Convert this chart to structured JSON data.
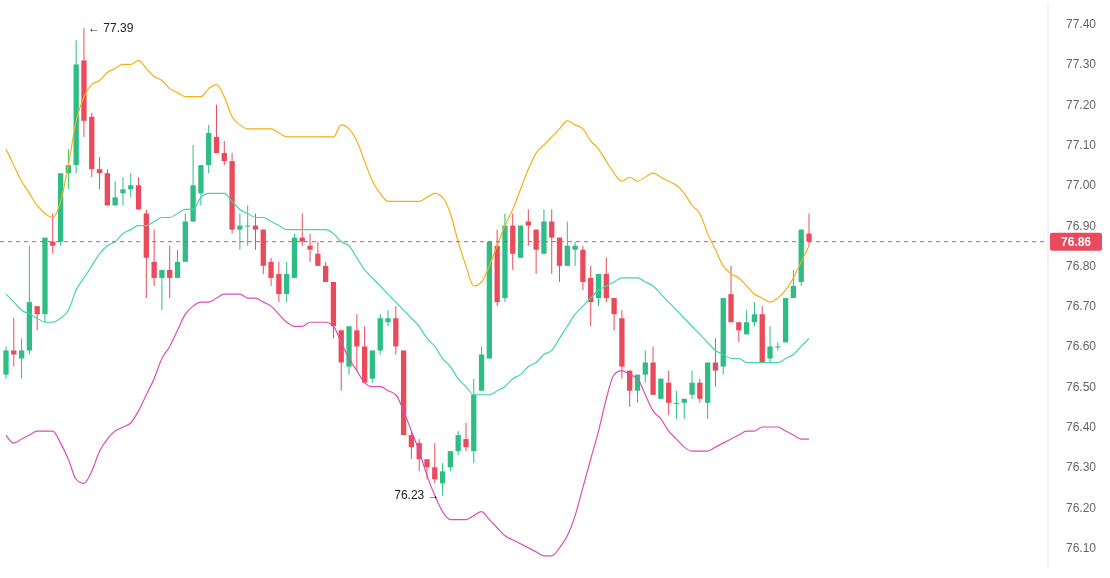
{
  "chart_data": {
    "type": "candlestick",
    "categories": [
      null,
      null,
      null,
      null,
      null,
      null,
      null,
      null,
      null,
      null,
      null,
      null,
      null,
      null,
      null,
      null,
      null,
      null,
      null,
      null,
      null,
      null,
      null,
      null,
      null,
      null,
      null,
      null,
      null,
      null,
      null,
      null,
      null,
      null,
      null,
      null,
      null,
      null,
      null,
      null,
      null,
      null,
      null,
      null,
      null,
      null,
      null,
      null,
      null,
      null,
      null,
      null,
      null,
      null,
      null,
      null,
      null,
      null,
      null,
      null,
      null,
      null,
      null,
      null,
      null,
      null,
      null,
      null,
      null,
      null,
      null,
      null,
      null,
      null,
      null,
      null,
      null,
      null,
      null,
      null,
      null,
      null,
      null,
      null,
      null,
      null,
      null,
      null,
      null,
      null,
      null,
      null,
      null,
      null,
      null,
      null,
      null,
      null,
      null,
      null,
      null,
      null,
      null,
      null
    ],
    "ohlc": [
      [
        76.53,
        76.6,
        76.52,
        76.59
      ],
      [
        76.59,
        76.67,
        76.55,
        76.58
      ],
      [
        76.57,
        76.62,
        76.52,
        76.59
      ],
      [
        76.59,
        76.85,
        76.58,
        76.71
      ],
      [
        76.7,
        76.7,
        76.64,
        76.68
      ],
      [
        76.68,
        76.87,
        76.66,
        76.87
      ],
      [
        76.86,
        76.93,
        76.83,
        76.85
      ],
      [
        76.86,
        77.03,
        76.85,
        77.03
      ],
      [
        77.03,
        77.09,
        76.99,
        77.05
      ],
      [
        77.05,
        77.36,
        77.03,
        77.3
      ],
      [
        77.31,
        77.39,
        77.12,
        77.16
      ],
      [
        77.17,
        77.18,
        77.02,
        77.04
      ],
      [
        77.04,
        77.07,
        76.99,
        77.03
      ],
      [
        77.03,
        77.04,
        76.95,
        76.95
      ],
      [
        76.95,
        77.01,
        76.95,
        76.97
      ],
      [
        76.98,
        77.02,
        76.95,
        76.99
      ],
      [
        76.99,
        77.03,
        76.97,
        77.0
      ],
      [
        77.0,
        77.02,
        76.94,
        76.94
      ],
      [
        76.93,
        76.94,
        76.72,
        76.82
      ],
      [
        76.81,
        76.89,
        76.75,
        76.77
      ],
      [
        76.77,
        76.79,
        76.69,
        76.79
      ],
      [
        76.79,
        76.85,
        76.72,
        76.77
      ],
      [
        76.77,
        76.84,
        76.77,
        76.81
      ],
      [
        76.81,
        76.93,
        76.81,
        76.91
      ],
      [
        76.91,
        77.1,
        76.91,
        77.0
      ],
      [
        76.98,
        77.05,
        76.95,
        77.05
      ],
      [
        77.05,
        77.15,
        77.03,
        77.13
      ],
      [
        77.12,
        77.2,
        77.08,
        77.08
      ],
      [
        77.08,
        77.11,
        77.05,
        77.06
      ],
      [
        77.06,
        77.08,
        76.88,
        76.89
      ],
      [
        76.89,
        76.93,
        76.84,
        76.9
      ],
      [
        76.9,
        76.95,
        76.85,
        76.9
      ],
      [
        76.9,
        76.93,
        76.84,
        76.89
      ],
      [
        76.89,
        76.89,
        76.78,
        76.8
      ],
      [
        76.81,
        76.82,
        76.75,
        76.77
      ],
      [
        76.78,
        76.81,
        76.71,
        76.73
      ],
      [
        76.73,
        76.81,
        76.71,
        76.78
      ],
      [
        76.77,
        76.88,
        76.77,
        76.87
      ],
      [
        76.87,
        76.93,
        76.85,
        76.86
      ],
      [
        76.85,
        76.88,
        76.81,
        76.84
      ],
      [
        76.83,
        76.86,
        76.8,
        76.8
      ],
      [
        76.8,
        76.81,
        76.76,
        76.76
      ],
      [
        76.76,
        76.76,
        76.62,
        76.65
      ],
      [
        76.64,
        76.64,
        76.49,
        76.56
      ],
      [
        76.55,
        76.65,
        76.53,
        76.65
      ],
      [
        76.64,
        76.68,
        76.54,
        76.6
      ],
      [
        76.6,
        76.65,
        76.51,
        76.51
      ],
      [
        76.52,
        76.59,
        76.51,
        76.59
      ],
      [
        76.59,
        76.68,
        76.58,
        76.67
      ],
      [
        76.66,
        76.69,
        76.65,
        76.67
      ],
      [
        76.67,
        76.7,
        76.58,
        76.6
      ],
      [
        76.59,
        76.59,
        76.38,
        76.38
      ],
      [
        76.38,
        76.39,
        76.32,
        76.35
      ],
      [
        76.36,
        76.37,
        76.29,
        76.32
      ],
      [
        76.32,
        76.32,
        76.27,
        76.3
      ],
      [
        76.3,
        76.36,
        76.26,
        76.27
      ],
      [
        76.26,
        76.31,
        76.23,
        76.29
      ],
      [
        76.3,
        76.34,
        76.29,
        76.34
      ],
      [
        76.34,
        76.39,
        76.33,
        76.38
      ],
      [
        76.37,
        76.41,
        76.34,
        76.35
      ],
      [
        76.34,
        76.52,
        76.31,
        76.48
      ],
      [
        76.49,
        76.6,
        76.49,
        76.58
      ],
      [
        76.57,
        76.86,
        76.57,
        76.86
      ],
      [
        76.85,
        76.89,
        76.7,
        76.71
      ],
      [
        76.72,
        76.93,
        76.71,
        76.9
      ],
      [
        76.9,
        76.93,
        76.79,
        76.83
      ],
      [
        76.82,
        76.9,
        76.82,
        76.9
      ],
      [
        76.91,
        76.94,
        76.85,
        76.9
      ],
      [
        76.89,
        76.89,
        76.78,
        76.84
      ],
      [
        76.83,
        76.94,
        76.83,
        76.91
      ],
      [
        76.91,
        76.94,
        76.78,
        76.87
      ],
      [
        76.87,
        76.87,
        76.76,
        76.8
      ],
      [
        76.8,
        76.91,
        76.8,
        76.85
      ],
      [
        76.84,
        76.86,
        76.8,
        76.85
      ],
      [
        76.84,
        76.85,
        76.74,
        76.76
      ],
      [
        76.77,
        76.8,
        76.65,
        76.71
      ],
      [
        76.72,
        76.78,
        76.7,
        76.78
      ],
      [
        76.78,
        76.82,
        76.71,
        76.72
      ],
      [
        76.72,
        76.72,
        76.64,
        76.68
      ],
      [
        76.67,
        76.69,
        76.52,
        76.55
      ],
      [
        76.54,
        76.54,
        76.45,
        76.49
      ],
      [
        76.49,
        76.53,
        76.46,
        76.53
      ],
      [
        76.53,
        76.59,
        76.51,
        76.56
      ],
      [
        76.56,
        76.6,
        76.48,
        76.48
      ],
      [
        76.47,
        76.52,
        76.47,
        76.52
      ],
      [
        76.51,
        76.54,
        76.43,
        76.46
      ],
      [
        76.46,
        76.49,
        76.42,
        76.46
      ],
      [
        76.46,
        76.47,
        76.42,
        76.47
      ],
      [
        76.48,
        76.54,
        76.47,
        76.51
      ],
      [
        76.51,
        76.52,
        76.46,
        76.47
      ],
      [
        76.46,
        76.56,
        76.42,
        76.56
      ],
      [
        76.56,
        76.62,
        76.5,
        76.54
      ],
      [
        76.55,
        76.72,
        76.53,
        76.72
      ],
      [
        76.73,
        76.8,
        76.66,
        76.66
      ],
      [
        76.66,
        76.66,
        76.61,
        76.64
      ],
      [
        76.63,
        76.69,
        76.63,
        76.66
      ],
      [
        76.66,
        76.71,
        76.65,
        76.68
      ],
      [
        76.68,
        76.7,
        76.56,
        76.56
      ],
      [
        76.57,
        76.65,
        76.56,
        76.6
      ],
      [
        76.6,
        76.61,
        76.59,
        76.6
      ],
      [
        76.61,
        76.72,
        76.61,
        76.72
      ],
      [
        76.72,
        76.79,
        76.72,
        76.75
      ],
      [
        76.76,
        76.89,
        76.75,
        76.89
      ],
      [
        76.88,
        76.93,
        76.85,
        76.86
      ]
    ],
    "series": [
      {
        "type": "line",
        "color": "#f5b014",
        "values": [
          77.09,
          77.05,
          77.01,
          76.98,
          76.95,
          76.93,
          76.92,
          76.96,
          77.05,
          77.16,
          77.22,
          77.25,
          77.26,
          77.28,
          77.29,
          77.3,
          77.3,
          77.31,
          77.29,
          77.27,
          77.26,
          77.24,
          77.23,
          77.22,
          77.22,
          77.22,
          77.24,
          77.25,
          77.22,
          77.17,
          77.15,
          77.14,
          77.14,
          77.14,
          77.14,
          77.13,
          77.12,
          77.12,
          77.12,
          77.12,
          77.12,
          77.12,
          77.12,
          77.15,
          77.14,
          77.11,
          77.06,
          77.01,
          76.98,
          76.96,
          76.96,
          76.96,
          76.96,
          76.96,
          76.97,
          76.98,
          76.97,
          76.93,
          76.86,
          76.8,
          76.75,
          76.76,
          76.8,
          76.85,
          76.9,
          76.94,
          76.99,
          77.04,
          77.08,
          77.1,
          77.12,
          77.14,
          77.16,
          77.15,
          77.14,
          77.11,
          77.09,
          77.06,
          77.03,
          77.01,
          77.02,
          77.01,
          77.02,
          77.03,
          77.02,
          77.01,
          77.0,
          76.98,
          76.95,
          76.93,
          76.88,
          76.84,
          76.8,
          76.78,
          76.77,
          76.75,
          76.73,
          76.72,
          76.71,
          76.72,
          76.74,
          76.77,
          76.81,
          76.85
        ]
      },
      {
        "type": "line",
        "color": "#45d3b0",
        "values": [
          76.73,
          76.71,
          76.69,
          76.68,
          76.67,
          76.66,
          76.66,
          76.67,
          76.69,
          76.74,
          76.77,
          76.8,
          76.83,
          76.85,
          76.86,
          76.88,
          76.89,
          76.9,
          76.9,
          76.91,
          76.92,
          76.92,
          76.93,
          76.94,
          76.94,
          76.97,
          76.98,
          76.98,
          76.98,
          76.96,
          76.94,
          76.93,
          76.92,
          76.92,
          76.91,
          76.9,
          76.89,
          76.89,
          76.89,
          76.89,
          76.89,
          76.89,
          76.88,
          76.86,
          76.85,
          76.82,
          76.79,
          76.77,
          76.75,
          76.73,
          76.71,
          76.69,
          76.67,
          76.65,
          76.62,
          76.6,
          76.57,
          76.55,
          76.52,
          76.5,
          76.48,
          76.48,
          76.48,
          76.49,
          76.5,
          76.52,
          76.53,
          76.55,
          76.56,
          76.58,
          76.59,
          76.62,
          76.65,
          76.68,
          76.7,
          76.72,
          76.74,
          76.75,
          76.76,
          76.77,
          76.77,
          76.77,
          76.76,
          76.75,
          76.73,
          76.71,
          76.69,
          76.67,
          76.65,
          76.63,
          76.61,
          76.59,
          76.58,
          76.57,
          76.57,
          76.56,
          76.56,
          76.56,
          76.56,
          76.56,
          76.57,
          76.58,
          76.6,
          76.62
        ]
      },
      {
        "type": "line",
        "color": "#d94fb8",
        "values": [
          76.38,
          76.36,
          76.37,
          76.38,
          76.39,
          76.39,
          76.39,
          76.36,
          76.32,
          76.27,
          76.26,
          76.29,
          76.34,
          76.37,
          76.39,
          76.4,
          76.41,
          76.44,
          76.48,
          76.52,
          76.57,
          76.6,
          76.64,
          76.68,
          76.7,
          76.71,
          76.71,
          76.72,
          76.73,
          76.73,
          76.73,
          76.72,
          76.72,
          76.71,
          76.7,
          76.68,
          76.66,
          76.65,
          76.65,
          76.66,
          76.66,
          76.66,
          76.65,
          76.61,
          76.57,
          76.54,
          76.51,
          76.5,
          76.5,
          76.49,
          76.48,
          76.44,
          76.39,
          76.34,
          76.28,
          76.23,
          76.19,
          76.17,
          76.17,
          76.17,
          76.18,
          76.19,
          76.17,
          76.15,
          76.13,
          76.12,
          76.11,
          76.1,
          76.09,
          76.08,
          76.08,
          76.1,
          76.13,
          76.18,
          76.25,
          76.32,
          76.39,
          76.47,
          76.53,
          76.54,
          76.53,
          76.52,
          76.48,
          76.44,
          76.42,
          76.39,
          76.37,
          76.35,
          76.34,
          76.34,
          76.34,
          76.35,
          76.36,
          76.37,
          76.38,
          76.39,
          76.39,
          76.4,
          76.4,
          76.4,
          76.39,
          76.38,
          76.37,
          76.37
        ]
      }
    ],
    "ylim": [
      76.05,
      77.45
    ],
    "yticks": [
      {
        "value": 76.1,
        "label": "76.10"
      },
      {
        "value": 76.2,
        "label": "76.20"
      },
      {
        "value": 76.3,
        "label": "76.30"
      },
      {
        "value": 76.4,
        "label": "76.40"
      },
      {
        "value": 76.5,
        "label": "76.50"
      },
      {
        "value": 76.6,
        "label": "76.60"
      },
      {
        "value": 76.7,
        "label": "76.70"
      },
      {
        "value": 76.8,
        "label": "76.80"
      },
      {
        "value": 76.9,
        "label": "76.90"
      },
      {
        "value": 77.0,
        "label": "77.00"
      },
      {
        "value": 77.1,
        "label": "77.10"
      },
      {
        "value": 77.2,
        "label": "77.20"
      },
      {
        "value": 77.3,
        "label": "77.30"
      },
      {
        "value": 77.4,
        "label": "77.40"
      }
    ],
    "tick_labels": "y",
    "ref_lines": [
      {
        "axis": "y",
        "value": 76.86,
        "label": "76.86",
        "color": "#e84a5f",
        "line_style": "dashed"
      }
    ],
    "annotations": [
      "← 77.39",
      "76.23 →"
    ]
  }
}
